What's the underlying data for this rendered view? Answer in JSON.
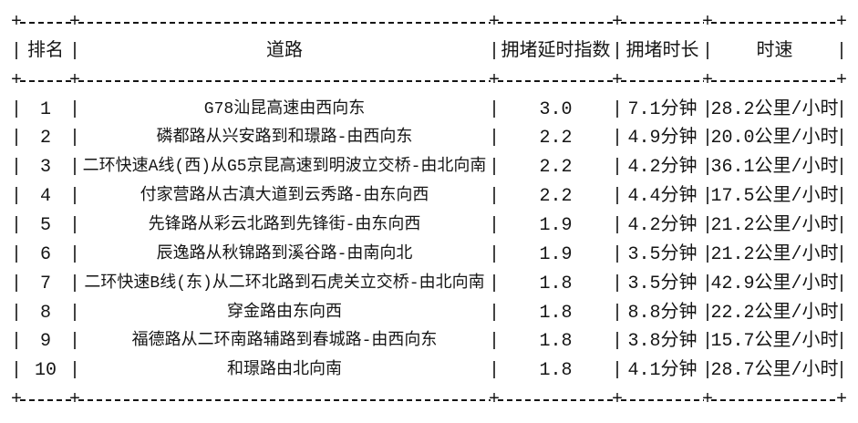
{
  "glyphs": {
    "pipe": "|",
    "plus": "+"
  },
  "colors": {
    "text": "#151515",
    "background": "#ffffff"
  },
  "chart_data": {
    "type": "table",
    "title": "",
    "columns": [
      "排名",
      "道路",
      "拥堵延时指数",
      "拥堵时长",
      "时速"
    ],
    "rows": [
      [
        "1",
        "G78汕昆高速由西向东",
        "3.0",
        "7.1分钟",
        "28.2公里/小时"
      ],
      [
        "2",
        "磷都路从兴安路到和璟路-由西向东",
        "2.2",
        "4.9分钟",
        "20.0公里/小时"
      ],
      [
        "3",
        "二环快速A线(西)从G5京昆高速到明波立交桥-由北向南",
        "2.2",
        "4.2分钟",
        "36.1公里/小时"
      ],
      [
        "4",
        "付家营路从古滇大道到云秀路-由东向西",
        "2.2",
        "4.4分钟",
        "17.5公里/小时"
      ],
      [
        "5",
        "先锋路从彩云北路到先锋街-由东向西",
        "1.9",
        "4.2分钟",
        "21.2公里/小时"
      ],
      [
        "6",
        "辰逸路从秋锦路到溪谷路-由南向北",
        "1.9",
        "3.5分钟",
        "21.2公里/小时"
      ],
      [
        "7",
        "二环快速B线(东)从二环北路到石虎关立交桥-由北向南",
        "1.8",
        "3.5分钟",
        "42.9公里/小时"
      ],
      [
        "8",
        "穿金路由东向西",
        "1.8",
        "8.8分钟",
        "22.2公里/小时"
      ],
      [
        "9",
        "福德路从二环南路辅路到春城路-由西向东",
        "1.8",
        "3.8分钟",
        "15.7公里/小时"
      ],
      [
        "10",
        "和璟路由北向南",
        "1.8",
        "4.1分钟",
        "28.7公里/小时"
      ]
    ],
    "numeric": {
      "delay_index": [
        3.0,
        2.2,
        2.2,
        2.2,
        1.9,
        1.9,
        1.8,
        1.8,
        1.8,
        1.8
      ],
      "duration_minutes": [
        7.1,
        4.9,
        4.2,
        4.4,
        4.2,
        3.5,
        3.5,
        8.8,
        3.8,
        4.1
      ],
      "speed_kmh": [
        28.2,
        20.0,
        36.1,
        17.5,
        21.2,
        21.2,
        42.9,
        22.2,
        15.7,
        28.7
      ]
    },
    "units": {
      "duration": "分钟",
      "speed": "公里/小时"
    }
  }
}
